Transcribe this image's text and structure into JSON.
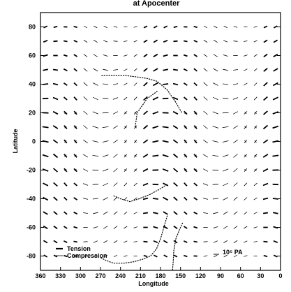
{
  "chart_data": {
    "type": "vector-field",
    "title": "at Apocenter",
    "xlabel": "Longitude",
    "ylabel": "Latitude",
    "xlim": [
      360,
      0
    ],
    "ylim": [
      -90,
      90
    ],
    "x_ticks": [
      360,
      330,
      300,
      270,
      240,
      210,
      180,
      150,
      120,
      90,
      60,
      30,
      0
    ],
    "y_ticks": [
      -80,
      -60,
      -40,
      -20,
      0,
      20,
      40,
      60,
      80
    ],
    "grid": false,
    "vector_spacing_deg": {
      "lon": 15,
      "lat": 10
    },
    "legend": {
      "placement": "bottom-left",
      "entries": [
        {
          "label": "Tension",
          "style": "bold"
        },
        {
          "label": "Compression",
          "style": "thin"
        }
      ]
    },
    "scale_label": "10⁵ PA",
    "dotted_traces": [
      {
        "name": "",
        "points": [
          [
            268,
            46
          ],
          [
            250,
            46
          ],
          [
            232,
            46
          ],
          [
            214,
            45
          ],
          [
            200,
            44
          ],
          [
            185,
            42
          ],
          [
            170,
            36
          ],
          [
            158,
            28
          ],
          [
            148,
            20
          ]
        ]
      },
      {
        "name": "",
        "points": [
          [
            250,
            -38
          ],
          [
            240,
            -40
          ],
          [
            226,
            -42
          ],
          [
            212,
            -40
          ],
          [
            196,
            -37
          ],
          [
            180,
            -33
          ],
          [
            170,
            -30
          ]
        ]
      },
      {
        "name": "",
        "points": [
          [
            185,
            35
          ],
          [
            200,
            30
          ],
          [
            215,
            20
          ],
          [
            218,
            10
          ]
        ]
      },
      {
        "name": "",
        "points": [
          [
            170,
            -52
          ],
          [
            175,
            -60
          ],
          [
            180,
            -68
          ],
          [
            186,
            -75
          ],
          [
            195,
            -80
          ],
          [
            205,
            -82
          ],
          [
            220,
            -84
          ],
          [
            235,
            -85
          ],
          [
            250,
            -85
          ],
          [
            262,
            -83
          ],
          [
            270,
            -81
          ]
        ]
      },
      {
        "name": "",
        "points": [
          [
            147,
            -57
          ],
          [
            152,
            -62
          ],
          [
            157,
            -68
          ],
          [
            160,
            -76
          ],
          [
            161,
            -84
          ],
          [
            162,
            -90
          ]
        ]
      }
    ]
  }
}
